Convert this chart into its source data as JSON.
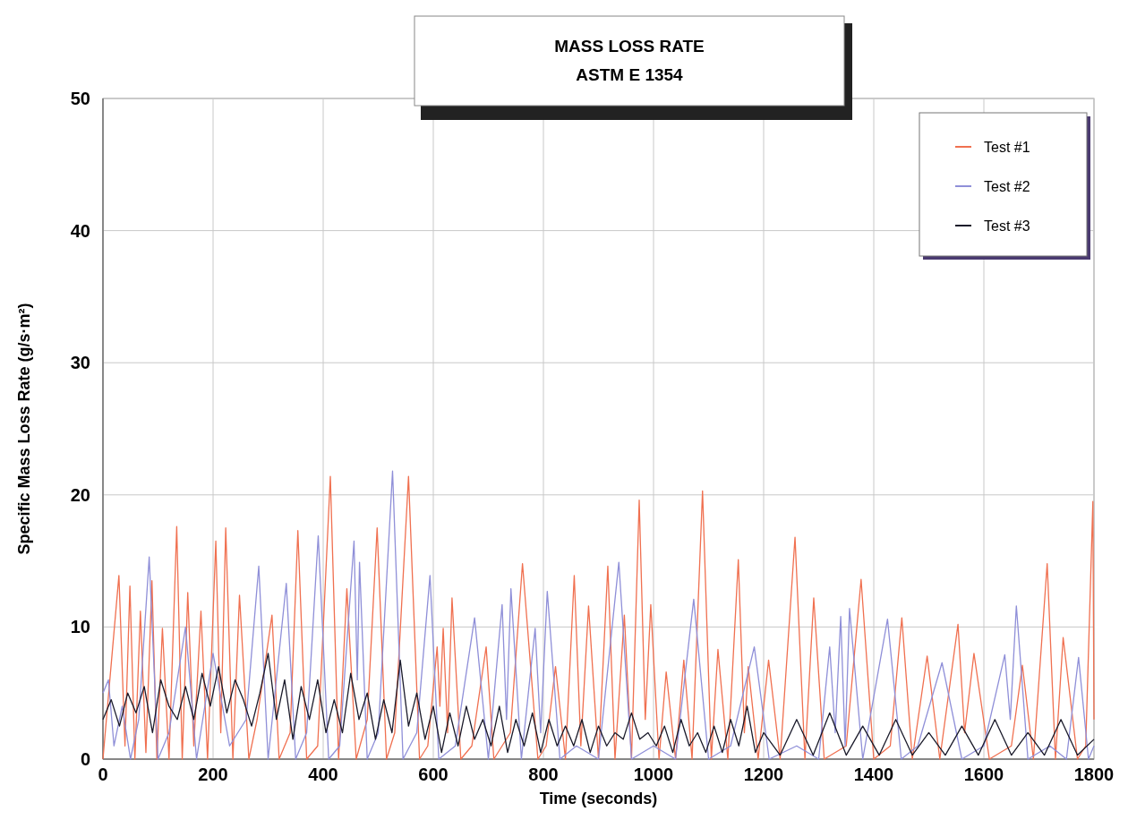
{
  "chart_data": {
    "type": "line",
    "title": "MASS LOSS RATE",
    "subtitle": "ASTM E 1354",
    "xlabel": "Time (seconds)",
    "ylabel": "Specific Mass Loss Rate (g/s·m²)",
    "xlim": [
      0,
      1800
    ],
    "xticks": [
      0,
      200,
      400,
      600,
      800,
      1000,
      1200,
      1400,
      1600,
      1800
    ],
    "ylim": [
      0,
      50
    ],
    "yticks": [
      0,
      10,
      20,
      30,
      40,
      50
    ],
    "grid": true,
    "legend": "top right",
    "marker": "none",
    "line_style": "solid",
    "series": [
      {
        "name": "Test #1",
        "color": "#f07050",
        "x": [
          0,
          29,
          40,
          49,
          58,
          68,
          78,
          89,
          98,
          108,
          120,
          134,
          144,
          154,
          165,
          178,
          190,
          205,
          214,
          223,
          236,
          248,
          265,
          280,
          307,
          320,
          340,
          354,
          370,
          390,
          413,
          428,
          443,
          460,
          480,
          498,
          515,
          530,
          555,
          575,
          590,
          607,
          612,
          618,
          626,
          634,
          650,
          670,
          696,
          710,
          740,
          762,
          790,
          805,
          822,
          840,
          856,
          868,
          882,
          900,
          917,
          930,
          947,
          960,
          974,
          985,
          995,
          1010,
          1023,
          1040,
          1055,
          1070,
          1089,
          1105,
          1117,
          1135,
          1154,
          1165,
          1172,
          1190,
          1209,
          1230,
          1257,
          1275,
          1291,
          1310,
          1350,
          1377,
          1400,
          1430,
          1451,
          1470,
          1497,
          1520,
          1553,
          1565,
          1582,
          1610,
          1650,
          1670,
          1690,
          1715,
          1730,
          1744,
          1770,
          1785,
          1798,
          1800
        ],
        "values": [
          0,
          13.9,
          1,
          13.1,
          0,
          11.2,
          0.5,
          13.5,
          0,
          9.9,
          0,
          17.6,
          0,
          12.6,
          1,
          11.2,
          0,
          16.5,
          2,
          17.5,
          0,
          12.4,
          0,
          3,
          10.9,
          0,
          2,
          17.3,
          0,
          1,
          21.4,
          0,
          12.9,
          0,
          3,
          17.5,
          0,
          2,
          21.4,
          0,
          1,
          8.5,
          4,
          9.9,
          2,
          12.2,
          0,
          1,
          8.5,
          0,
          2,
          14.8,
          0,
          1,
          7,
          0,
          13.9,
          1,
          11.6,
          0,
          14.6,
          0,
          10.9,
          0,
          19.6,
          3,
          11.7,
          0,
          6.6,
          0,
          7.5,
          0,
          20.3,
          0,
          8.3,
          0,
          15.1,
          2,
          7,
          0,
          7.5,
          0,
          16.8,
          0,
          12.2,
          0,
          1,
          13.6,
          0,
          1,
          10.7,
          0,
          7.8,
          0,
          10.2,
          2,
          8,
          0,
          1,
          7.1,
          0,
          14.8,
          0,
          9.2,
          0,
          1,
          19.5,
          3
        ]
      },
      {
        "name": "Test #2",
        "color": "#8f8fd8",
        "x": [
          0,
          10,
          20,
          35,
          50,
          65,
          84,
          100,
          120,
          150,
          170,
          200,
          230,
          260,
          283,
          300,
          333,
          350,
          370,
          391,
          410,
          430,
          456,
          462,
          466,
          480,
          500,
          526,
          545,
          570,
          594,
          610,
          640,
          675,
          700,
          725,
          733,
          741,
          760,
          785,
          795,
          807,
          830,
          860,
          900,
          937,
          960,
          1000,
          1040,
          1073,
          1100,
          1140,
          1183,
          1210,
          1260,
          1300,
          1320,
          1330,
          1340,
          1348,
          1356,
          1380,
          1425,
          1450,
          1480,
          1524,
          1560,
          1600,
          1638,
          1648,
          1659,
          1680,
          1720,
          1750,
          1772,
          1790,
          1800
        ],
        "values": [
          5,
          6,
          1,
          4,
          0,
          3,
          15.3,
          0,
          2,
          10,
          0,
          8,
          1,
          3,
          14.6,
          0,
          13.3,
          0,
          2,
          16.9,
          0,
          1,
          16.5,
          6,
          14.9,
          0,
          2,
          21.8,
          0,
          2,
          13.9,
          0,
          1,
          10.7,
          0,
          11.7,
          3,
          12.9,
          0,
          9.9,
          2,
          12.7,
          0,
          1,
          0,
          14.9,
          0,
          1,
          0,
          12.1,
          0,
          1,
          8.5,
          0,
          1,
          0,
          8.5,
          2,
          10.8,
          1,
          11.4,
          0,
          10.6,
          0,
          1,
          7.3,
          0,
          1,
          7.9,
          3,
          11.6,
          0,
          1,
          0,
          7.7,
          0,
          1
        ]
      },
      {
        "name": "Test #3",
        "color": "#1a1a2a",
        "x": [
          0,
          15,
          30,
          45,
          60,
          75,
          90,
          105,
          120,
          135,
          150,
          165,
          180,
          195,
          210,
          225,
          240,
          255,
          270,
          285,
          300,
          315,
          330,
          345,
          360,
          375,
          390,
          405,
          420,
          435,
          450,
          465,
          480,
          495,
          510,
          525,
          540,
          555,
          570,
          585,
          600,
          615,
          630,
          645,
          660,
          675,
          690,
          705,
          720,
          735,
          750,
          765,
          780,
          795,
          810,
          825,
          840,
          855,
          870,
          885,
          900,
          915,
          930,
          945,
          960,
          975,
          990,
          1005,
          1020,
          1035,
          1050,
          1065,
          1080,
          1095,
          1110,
          1125,
          1140,
          1155,
          1170,
          1185,
          1200,
          1230,
          1260,
          1290,
          1320,
          1350,
          1380,
          1410,
          1440,
          1470,
          1500,
          1530,
          1560,
          1590,
          1620,
          1650,
          1680,
          1710,
          1740,
          1770,
          1800
        ],
        "values": [
          3,
          4.5,
          2.5,
          5,
          3.5,
          5.5,
          2,
          6,
          4,
          3,
          5.5,
          3,
          6.5,
          4,
          7,
          3.5,
          6,
          4.5,
          2.5,
          5,
          8,
          3,
          6,
          1.5,
          5.5,
          3,
          6,
          2,
          4.5,
          2,
          6.5,
          3,
          5,
          1.5,
          4.5,
          2,
          7.5,
          2.5,
          5,
          1.5,
          4,
          0.5,
          3.5,
          1,
          4,
          1.5,
          3,
          1,
          4,
          0.5,
          3,
          1,
          3.5,
          0.5,
          3,
          1,
          2.5,
          1,
          3,
          0.5,
          2.5,
          1,
          2,
          1.5,
          3.5,
          1.5,
          2,
          1,
          2.5,
          0.5,
          3,
          1,
          2,
          0.5,
          2.5,
          0.5,
          3,
          1,
          4,
          0.5,
          2,
          0.3,
          3,
          0.3,
          3.5,
          0.3,
          2.5,
          0.3,
          3,
          0.3,
          2,
          0.3,
          2.5,
          0.3,
          3,
          0.3,
          2,
          0.3,
          3,
          0.3,
          1.5
        ]
      }
    ]
  }
}
